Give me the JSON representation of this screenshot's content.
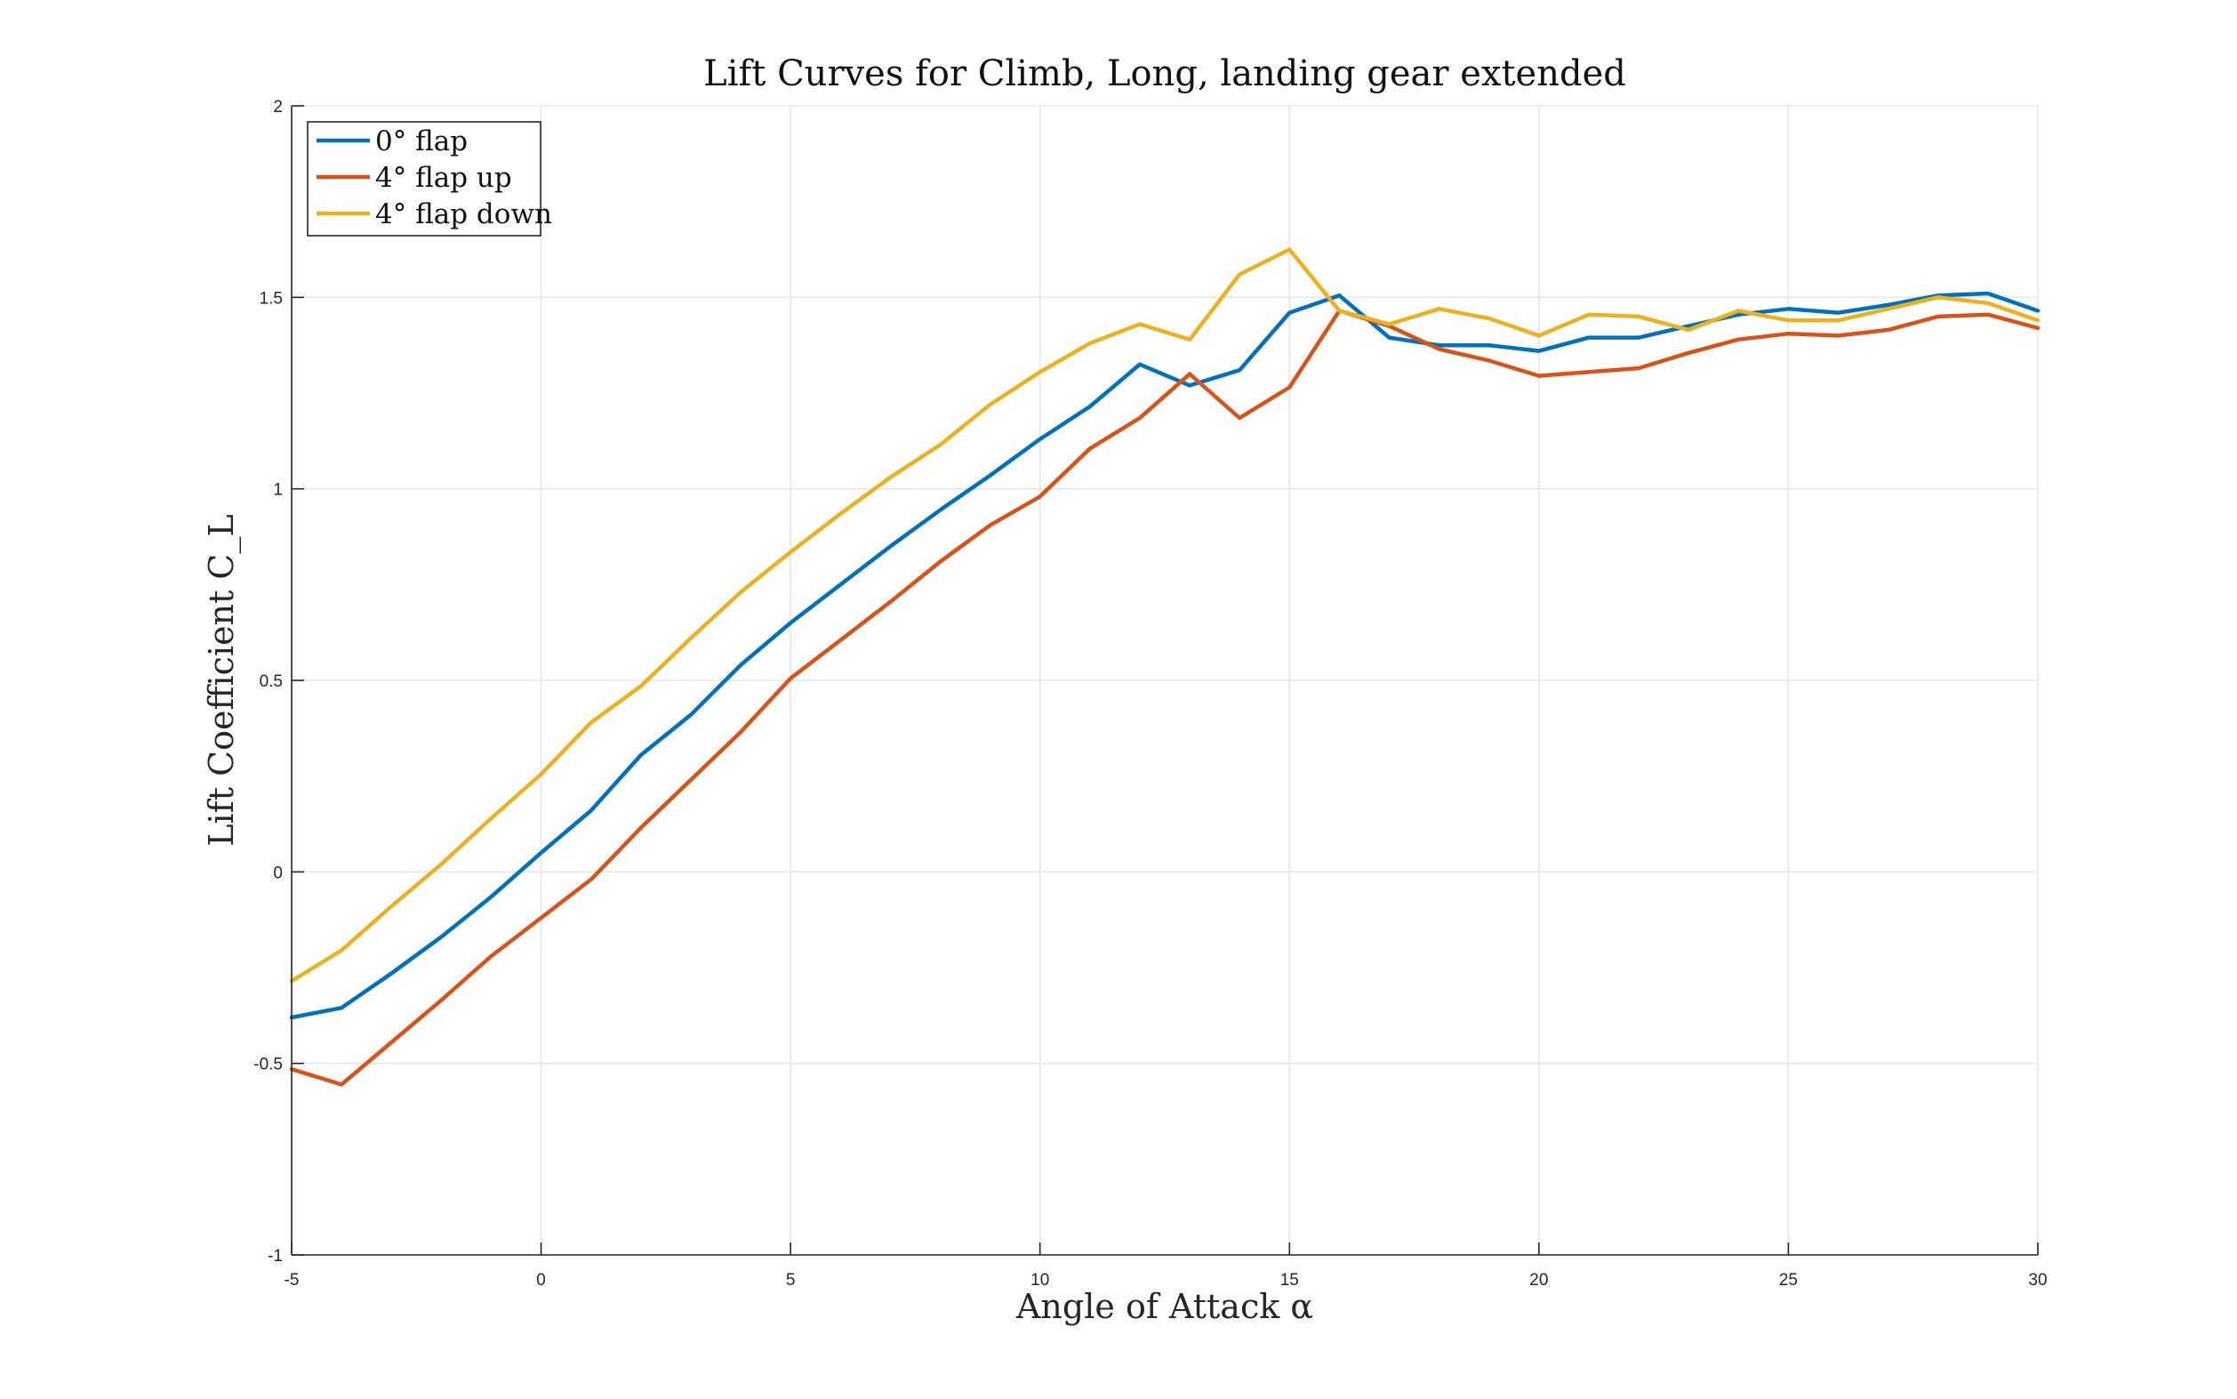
{
  "chart_data": {
    "type": "line",
    "title": "Lift Curves for Climb, Long, landing gear extended",
    "xlabel": "Angle of Attack α",
    "ylabel": "Lift Coefficient C_L",
    "xlim": [
      -5,
      30
    ],
    "ylim": [
      -1,
      2
    ],
    "xticks": [
      -5,
      0,
      5,
      10,
      15,
      20,
      25,
      30
    ],
    "yticks": [
      -1,
      -0.5,
      0,
      0.5,
      1,
      1.5,
      2
    ],
    "xtick_labels": [
      "-5",
      "0",
      "5",
      "10",
      "15",
      "20",
      "25",
      "30"
    ],
    "ytick_labels": [
      "-1",
      "-0.5",
      "0",
      "0.5",
      "1",
      "1.5",
      "2"
    ],
    "grid": true,
    "legend_position": "top-left",
    "x": [
      -5,
      -4,
      -3,
      -2,
      -1,
      0,
      1,
      2,
      3,
      4,
      5,
      6,
      7,
      8,
      9,
      10,
      11,
      12,
      13,
      14,
      15,
      16,
      17,
      18,
      19,
      20,
      21,
      22,
      23,
      24,
      25,
      26,
      27,
      28,
      29,
      30
    ],
    "series": [
      {
        "name": "0° flap",
        "color": "#0072BD",
        "values": [
          -0.38,
          -0.355,
          -0.265,
          -0.17,
          -0.065,
          0.05,
          0.16,
          0.305,
          0.41,
          0.54,
          0.65,
          0.75,
          0.85,
          0.945,
          1.035,
          1.13,
          1.215,
          1.325,
          1.27,
          1.31,
          1.46,
          1.505,
          1.395,
          1.375,
          1.375,
          1.36,
          1.395,
          1.395,
          1.425,
          1.455,
          1.47,
          1.46,
          1.48,
          1.505,
          1.51,
          1.465
        ]
      },
      {
        "name": "4° flap up",
        "color": "#D95319",
        "values": [
          -0.515,
          -0.555,
          -0.445,
          -0.335,
          -0.22,
          -0.12,
          -0.02,
          0.115,
          0.24,
          0.365,
          0.505,
          0.605,
          0.705,
          0.81,
          0.905,
          0.98,
          1.105,
          1.185,
          1.3,
          1.185,
          1.265,
          1.465,
          1.425,
          1.365,
          1.335,
          1.295,
          1.305,
          1.315,
          1.355,
          1.39,
          1.405,
          1.4,
          1.415,
          1.45,
          1.455,
          1.42
        ]
      },
      {
        "name": "4° flap down",
        "color": "#EDB120",
        "values": [
          -0.285,
          -0.205,
          -0.09,
          0.02,
          0.14,
          0.255,
          0.39,
          0.485,
          0.61,
          0.73,
          0.835,
          0.935,
          1.03,
          1.115,
          1.22,
          1.305,
          1.38,
          1.43,
          1.39,
          1.56,
          1.625,
          1.465,
          1.43,
          1.47,
          1.445,
          1.4,
          1.455,
          1.45,
          1.415,
          1.465,
          1.44,
          1.44,
          1.47,
          1.5,
          1.485,
          1.44
        ]
      }
    ]
  }
}
